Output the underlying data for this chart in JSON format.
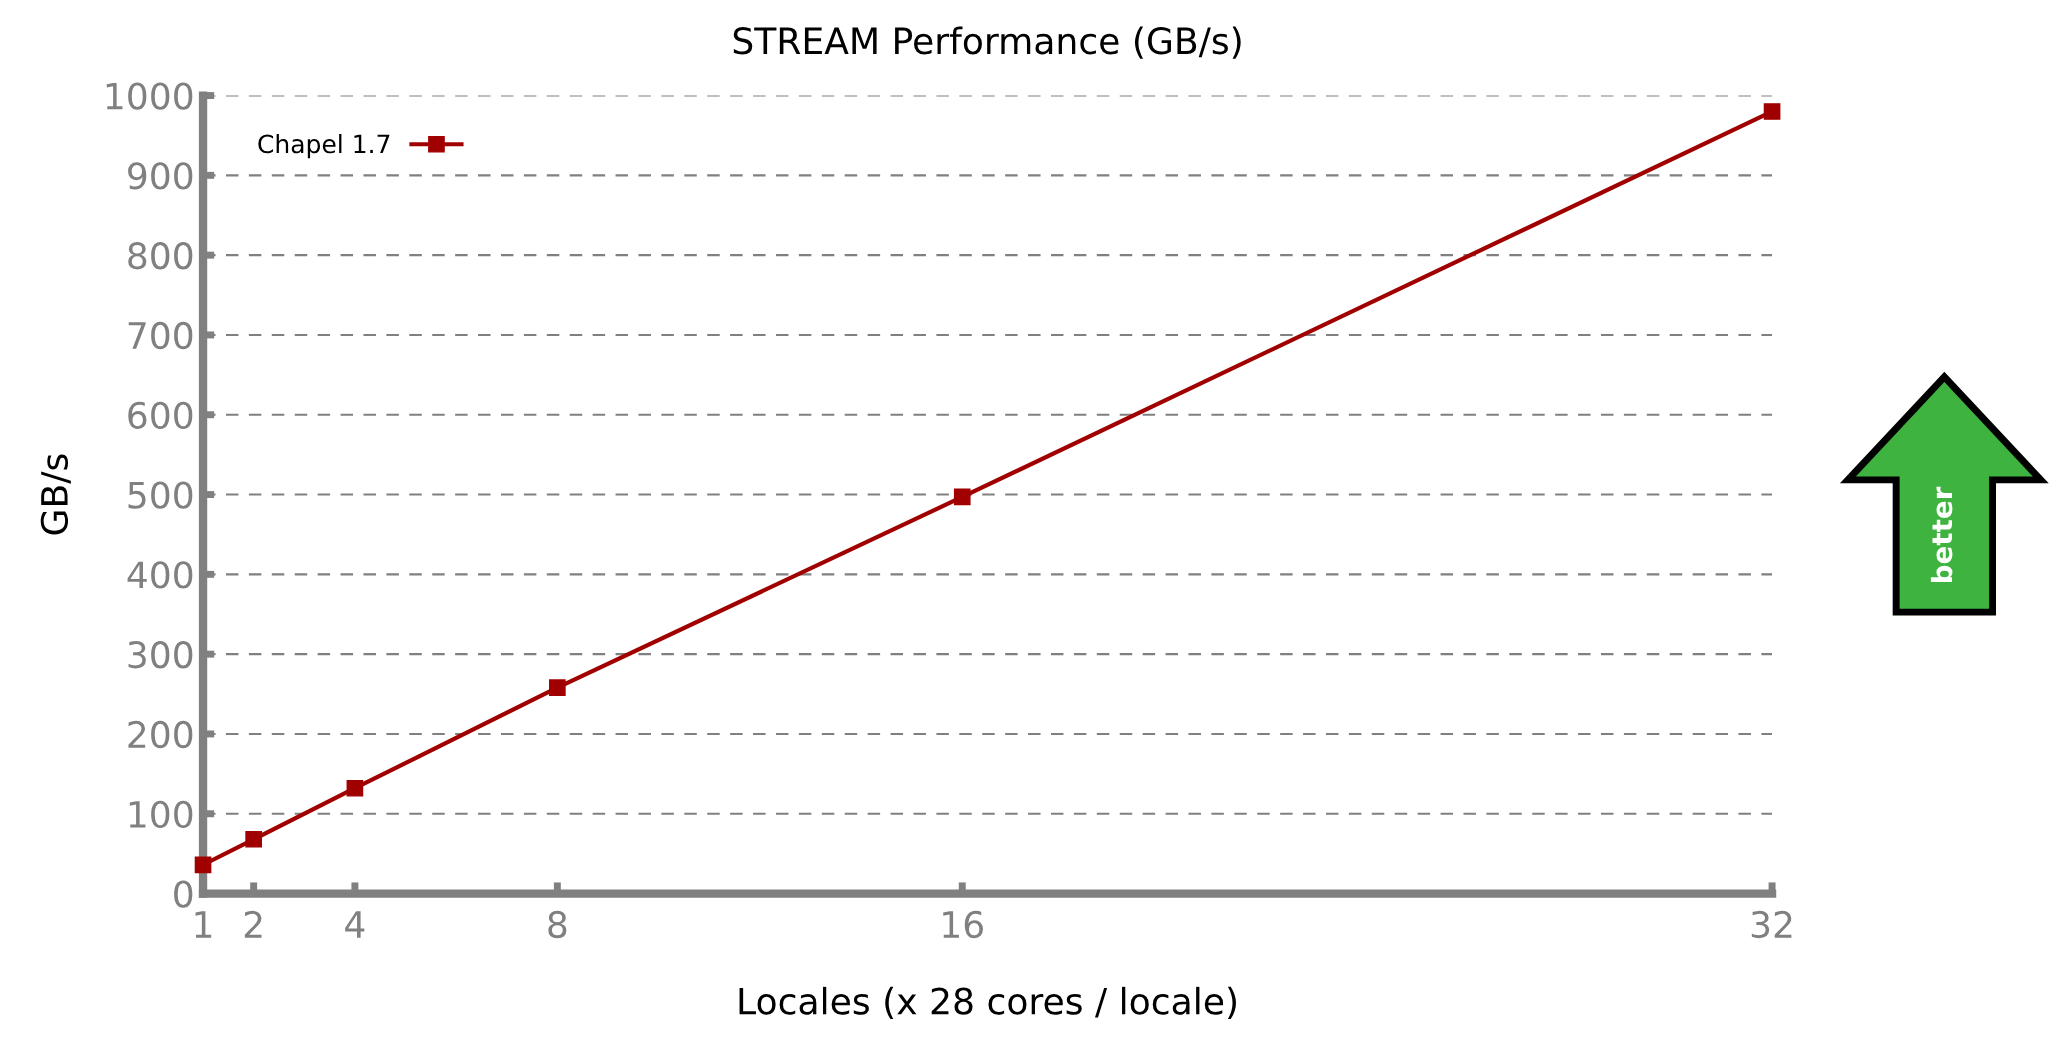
{
  "chart_data": {
    "type": "line",
    "title": "STREAM Performance (GB/s)",
    "xlabel": "Locales (x 28 cores / locale)",
    "ylabel": "GB/s",
    "x": [
      1,
      2,
      4,
      8,
      16,
      32
    ],
    "series": [
      {
        "name": "Chapel 1.7",
        "color": "#a00000",
        "values": [
          36,
          68,
          132,
          258,
          497,
          980
        ]
      }
    ],
    "xlim": [
      1,
      32
    ],
    "xticks": [
      1,
      2,
      4,
      8,
      16,
      32
    ],
    "ylim": [
      0,
      1000
    ],
    "yticks": [
      0,
      100,
      200,
      300,
      400,
      500,
      600,
      700,
      800,
      900,
      1000
    ],
    "grid": "y",
    "legend": "top left",
    "marker": "square",
    "line_style": "solid",
    "annotations": [
      "better"
    ]
  }
}
